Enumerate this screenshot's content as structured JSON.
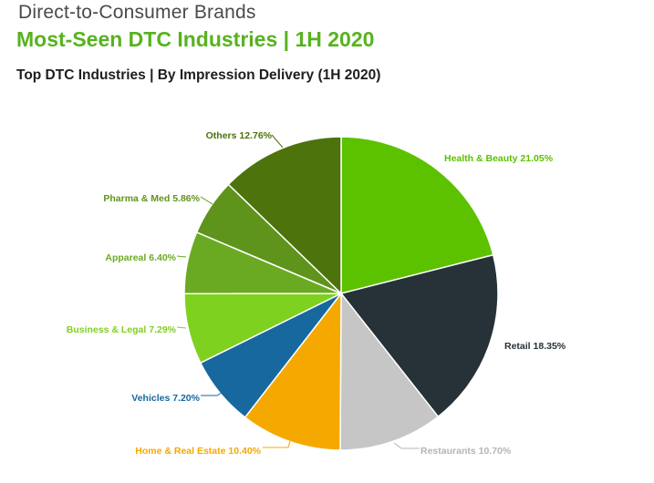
{
  "header": {
    "supertitle": "Direct-to-Consumer Brands",
    "title": "Most-Seen DTC Industries | 1H 2020"
  },
  "chart_data": {
    "type": "pie",
    "title": "Top DTC Industries | By Impression Delivery (1H 2020)",
    "unit": "%",
    "slices": [
      {
        "name": "Health & Beauty",
        "value": 21.05,
        "color": "#5cc200",
        "label_color": "#5cc200",
        "label": "Health & Beauty 21.05%"
      },
      {
        "name": "Retail",
        "value": 18.35,
        "color": "#263238",
        "label_color": "#263238",
        "label": "Retail 18.35%"
      },
      {
        "name": "Restaurants",
        "value": 10.7,
        "color": "#c6c6c6",
        "label_color": "#b5b5b5",
        "label": "Restaurants 10.70%"
      },
      {
        "name": "Home & Real Estate",
        "value": 10.4,
        "color": "#f5a800",
        "label_color": "#f5a800",
        "label": "Home & Real Estate 10.40%"
      },
      {
        "name": "Vehicles",
        "value": 7.2,
        "color": "#17689e",
        "label_color": "#17689e",
        "label": "Vehicles 7.20%"
      },
      {
        "name": "Business & Legal",
        "value": 7.29,
        "color": "#7fd11f",
        "label_color": "#7fd11f",
        "label": "Business & Legal 7.29%"
      },
      {
        "name": "Appareal",
        "value": 6.4,
        "color": "#6aaa22",
        "label_color": "#6aaa22",
        "label": "Appareal 6.40%"
      },
      {
        "name": "Pharma & Med",
        "value": 5.86,
        "color": "#5e941b",
        "label_color": "#5e941b",
        "label": "Pharma & Med 5.86%"
      },
      {
        "name": "Others",
        "value": 12.76,
        "color": "#4c730c",
        "label_color": "#4c730c",
        "label": "Others 12.76%"
      }
    ]
  }
}
